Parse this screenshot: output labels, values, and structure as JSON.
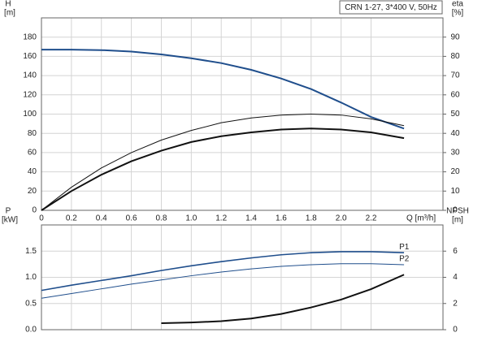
{
  "chart_data": [
    {
      "type": "line",
      "title": "CRN 1-27, 3*400 V, 50Hz",
      "ylabel": "H",
      "yunit": "[m]",
      "y2label": "eta",
      "y2unit": "[%]",
      "xlabel": "Q [m³/h]",
      "x": [
        0,
        0.2,
        0.4,
        0.6,
        0.8,
        1.0,
        1.2,
        1.4,
        1.6,
        1.8,
        2.0,
        2.2,
        2.42
      ],
      "xlim": [
        0,
        2.68
      ],
      "xticks": [
        0,
        0.2,
        0.4,
        0.6,
        0.8,
        {
          "value": 1,
          "label": "1.0"
        },
        1.2,
        1.4,
        1.6,
        1.8,
        {
          "value": 2,
          "label": "2.0"
        },
        2.2
      ],
      "ylim": [
        0,
        200
      ],
      "yticks": [
        0,
        20,
        40,
        60,
        80,
        100,
        120,
        140,
        160,
        180
      ],
      "y2lim": [
        0,
        100
      ],
      "y2ticks": [
        0,
        10,
        20,
        30,
        40,
        50,
        60,
        70,
        80,
        90
      ],
      "grid": true,
      "series": [
        {
          "color": "#1f4e8c",
          "linewidth": 2,
          "values": [
            167,
            167,
            166.5,
            165,
            162,
            158,
            153,
            146,
            137,
            126,
            112,
            97,
            85
          ]
        },
        {
          "color": "#111111",
          "linewidth": 1,
          "axis": "y2",
          "values": [
            0,
            12,
            22,
            30,
            36.5,
            41.5,
            45.5,
            48,
            49.5,
            50,
            49.5,
            47.5,
            44
          ]
        },
        {
          "color": "#111111",
          "linewidth": 2,
          "axis": "y2",
          "values": [
            0,
            10,
            18.5,
            25.5,
            31,
            35.5,
            38.5,
            40.5,
            42,
            42.5,
            42,
            40.5,
            37.5
          ]
        }
      ]
    },
    {
      "type": "line",
      "ylabel": "P",
      "yunit": "[kW]",
      "y2label": "NPSH",
      "y2unit": "[m]",
      "x": [
        0,
        0.2,
        0.4,
        0.6,
        0.8,
        1.0,
        1.2,
        1.4,
        1.6,
        1.8,
        2.0,
        2.2,
        2.42
      ],
      "xlim": [
        0,
        2.68
      ],
      "xticks": [
        0,
        0.2,
        0.4,
        0.6,
        0.8,
        1,
        1.2,
        1.4,
        1.6,
        1.8,
        2,
        2.2
      ],
      "ylim": [
        0,
        2
      ],
      "yticks": [
        {
          "value": 0,
          "label": "0.0"
        },
        0.5,
        {
          "value": 1,
          "label": "1.0"
        },
        1.5
      ],
      "y2lim": [
        0,
        8
      ],
      "y2ticks": [
        0,
        2,
        4,
        6
      ],
      "grid": true,
      "series": [
        {
          "name": "P1",
          "color": "#1f4e8c",
          "linewidth": 1.6,
          "values": [
            0.75,
            0.85,
            0.94,
            1.03,
            1.13,
            1.22,
            1.3,
            1.37,
            1.43,
            1.47,
            1.49,
            1.49,
            1.47
          ]
        },
        {
          "name": "P2",
          "color": "#1f4e8c",
          "linewidth": 1,
          "values": [
            0.6,
            0.69,
            0.78,
            0.87,
            0.95,
            1.03,
            1.1,
            1.16,
            1.21,
            1.24,
            1.26,
            1.26,
            1.24
          ]
        },
        {
          "color": "#111111",
          "linewidth": 2,
          "axis": "y2",
          "values": [
            null,
            null,
            null,
            null,
            0.5,
            0.55,
            0.65,
            0.85,
            1.2,
            1.7,
            2.3,
            3.1,
            4.2
          ]
        }
      ]
    }
  ]
}
